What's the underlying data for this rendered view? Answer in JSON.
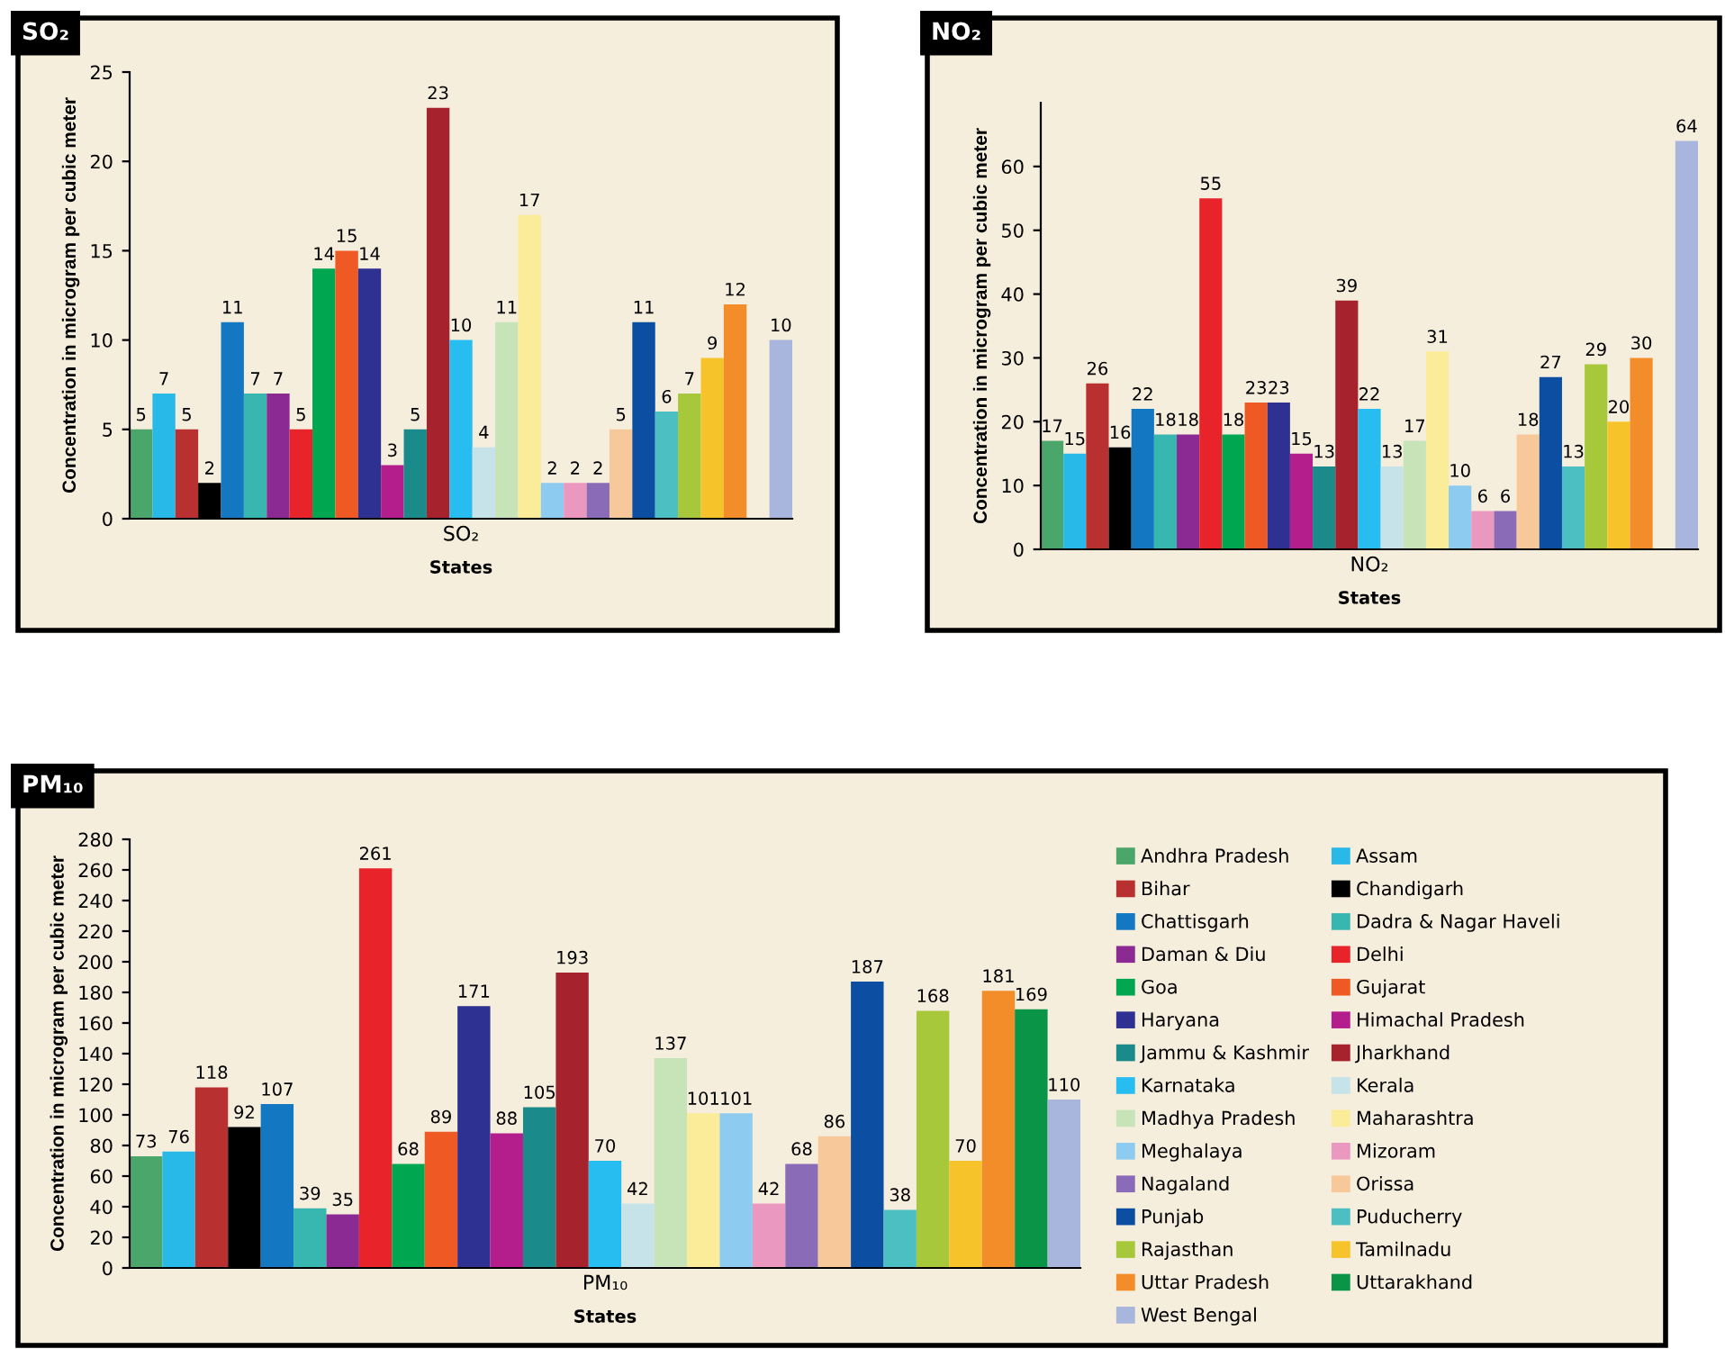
{
  "chart_data": [
    {
      "type": "bar",
      "title": "SO₂",
      "categories": [
        null,
        null,
        null,
        null,
        null,
        null,
        null,
        null,
        null,
        null,
        null,
        null,
        null,
        null,
        null,
        null,
        null,
        null,
        null,
        null,
        null,
        null,
        null,
        null,
        null,
        null,
        null,
        null,
        null
      ],
      "xlabel": "States",
      "ylabel": "Concentration in microgram per cubic meter",
      "annotations": [
        "SO₂"
      ],
      "ylim": [
        0,
        25
      ],
      "yticks": [
        0,
        5,
        10,
        15,
        20,
        25
      ],
      "data_labels": true,
      "values": [
        5,
        7,
        5,
        2,
        11,
        7,
        7,
        5,
        14,
        15,
        14,
        3,
        5,
        23,
        10,
        4,
        11,
        17,
        2,
        2,
        2,
        5,
        11,
        6,
        7,
        9,
        12,
        null,
        10
      ],
      "colors": [
        "#4aa66a",
        "#29b9e8",
        "#b8302f",
        "#000000",
        "#1377c1",
        "#38b6b0",
        "#8c2a94",
        "#e8232a",
        "#00a650",
        "#ef5a24",
        "#2e3192",
        "#b31e8c",
        "#1a8a8a",
        "#a6232d",
        "#27bdf0",
        "#c5e3e8",
        "#c7e3b8",
        "#fbec9a",
        "#8ecbf0",
        "#ea98c0",
        "#8a6bb8",
        "#f7c89a",
        "#0b4ea2",
        "#4cbfc2",
        "#a6c83a",
        "#f7c32a",
        "#f28d2a",
        "#0a9447",
        "#a8b5dc"
      ]
    },
    {
      "type": "bar",
      "title": "NO₂",
      "categories": [
        null,
        null,
        null,
        null,
        null,
        null,
        null,
        null,
        null,
        null,
        null,
        null,
        null,
        null,
        null,
        null,
        null,
        null,
        null,
        null,
        null,
        null,
        null,
        null,
        null,
        null,
        null,
        null,
        null
      ],
      "xlabel": "States",
      "ylabel": "Concentration in microgram per cubic meter",
      "annotations": [
        "NO₂"
      ],
      "ylim": [
        0,
        70
      ],
      "yticks": [
        0,
        10,
        20,
        30,
        40,
        50,
        60
      ],
      "data_labels": true,
      "values": [
        17,
        15,
        26,
        16,
        22,
        18,
        18,
        55,
        18,
        23,
        23,
        15,
        13,
        39,
        22,
        13,
        17,
        31,
        10,
        6,
        6,
        18,
        27,
        13,
        29,
        20,
        30,
        null,
        64
      ],
      "colors": [
        "#4aa66a",
        "#29b9e8",
        "#b8302f",
        "#000000",
        "#1377c1",
        "#38b6b0",
        "#8c2a94",
        "#e8232a",
        "#00a650",
        "#ef5a24",
        "#2e3192",
        "#b31e8c",
        "#1a8a8a",
        "#a6232d",
        "#27bdf0",
        "#c5e3e8",
        "#c7e3b8",
        "#fbec9a",
        "#8ecbf0",
        "#ea98c0",
        "#8a6bb8",
        "#f7c89a",
        "#0b4ea2",
        "#4cbfc2",
        "#a6c83a",
        "#f7c32a",
        "#f28d2a",
        "#0a9447",
        "#a8b5dc"
      ]
    },
    {
      "type": "bar",
      "title": "PM₁₀",
      "categories": [
        null,
        null,
        null,
        null,
        null,
        null,
        null,
        null,
        null,
        null,
        null,
        null,
        null,
        null,
        null,
        null,
        null,
        null,
        null,
        null,
        null,
        null,
        null,
        null,
        null,
        null,
        null,
        null,
        null
      ],
      "xlabel": "States",
      "ylabel": "Concentration in microgram per cubic meter",
      "annotations": [
        "PM₁₀"
      ],
      "ylim": [
        0,
        280
      ],
      "yticks": [
        0,
        20,
        40,
        60,
        80,
        100,
        120,
        140,
        160,
        180,
        200,
        220,
        240,
        260,
        280
      ],
      "data_labels": true,
      "legend": "right",
      "series": [
        {
          "name": "Andhra Pradesh",
          "color": "#4aa66a",
          "values": [
            73,
            null,
            null,
            null,
            null,
            null,
            null,
            null,
            null,
            null,
            null,
            null,
            null,
            null,
            null,
            null,
            null,
            null,
            null,
            null,
            null,
            null,
            null,
            null,
            null,
            null,
            null,
            null,
            null
          ]
        },
        {
          "name": "Assam",
          "color": "#29b9e8",
          "values": [
            null,
            76,
            null,
            null,
            null,
            null,
            null,
            null,
            null,
            null,
            null,
            null,
            null,
            null,
            null,
            null,
            null,
            null,
            null,
            null,
            null,
            null,
            null,
            null,
            null,
            null,
            null,
            null,
            null
          ]
        },
        {
          "name": "Bihar",
          "color": "#b8302f",
          "values": [
            null,
            null,
            118,
            null,
            null,
            null,
            null,
            null,
            null,
            null,
            null,
            null,
            null,
            null,
            null,
            null,
            null,
            null,
            null,
            null,
            null,
            null,
            null,
            null,
            null,
            null,
            null,
            null,
            null
          ]
        },
        {
          "name": "Chandigarh",
          "color": "#000000",
          "values": [
            null,
            null,
            null,
            92,
            null,
            null,
            null,
            null,
            null,
            null,
            null,
            null,
            null,
            null,
            null,
            null,
            null,
            null,
            null,
            null,
            null,
            null,
            null,
            null,
            null,
            null,
            null,
            null,
            null
          ]
        },
        {
          "name": "Chattisgarh",
          "color": "#1377c1",
          "values": [
            null,
            null,
            null,
            null,
            107,
            null,
            null,
            null,
            null,
            null,
            null,
            null,
            null,
            null,
            null,
            null,
            null,
            null,
            null,
            null,
            null,
            null,
            null,
            null,
            null,
            null,
            null,
            null,
            null
          ]
        },
        {
          "name": "Dadra & Nagar Haveli",
          "color": "#38b6b0",
          "values": [
            null,
            null,
            null,
            null,
            null,
            39,
            null,
            null,
            null,
            null,
            null,
            null,
            null,
            null,
            null,
            null,
            null,
            null,
            null,
            null,
            null,
            null,
            null,
            null,
            null,
            null,
            null,
            null,
            null
          ]
        },
        {
          "name": "Daman & Diu",
          "color": "#8c2a94",
          "values": [
            null,
            null,
            null,
            null,
            null,
            null,
            35,
            null,
            null,
            null,
            null,
            null,
            null,
            null,
            null,
            null,
            null,
            null,
            null,
            null,
            null,
            null,
            null,
            null,
            null,
            null,
            null,
            null,
            null
          ]
        },
        {
          "name": "Delhi",
          "color": "#e8232a",
          "values": [
            null,
            null,
            null,
            null,
            null,
            null,
            null,
            261,
            null,
            null,
            null,
            null,
            null,
            null,
            null,
            null,
            null,
            null,
            null,
            null,
            null,
            null,
            null,
            null,
            null,
            null,
            null,
            null,
            null
          ]
        },
        {
          "name": "Goa",
          "color": "#00a650",
          "values": [
            null,
            null,
            null,
            null,
            null,
            null,
            null,
            null,
            68,
            null,
            null,
            null,
            null,
            null,
            null,
            null,
            null,
            null,
            null,
            null,
            null,
            null,
            null,
            null,
            null,
            null,
            null,
            null,
            null
          ]
        },
        {
          "name": "Gujarat",
          "color": "#ef5a24",
          "values": [
            null,
            null,
            null,
            null,
            null,
            null,
            null,
            null,
            null,
            89,
            null,
            null,
            null,
            null,
            null,
            null,
            null,
            null,
            null,
            null,
            null,
            null,
            null,
            null,
            null,
            null,
            null,
            null,
            null
          ]
        },
        {
          "name": "Haryana",
          "color": "#2e3192",
          "values": [
            null,
            null,
            null,
            null,
            null,
            null,
            null,
            null,
            null,
            null,
            171,
            null,
            null,
            null,
            null,
            null,
            null,
            null,
            null,
            null,
            null,
            null,
            null,
            null,
            null,
            null,
            null,
            null,
            null
          ]
        },
        {
          "name": "Himachal Pradesh",
          "color": "#b31e8c",
          "values": [
            null,
            null,
            null,
            null,
            null,
            null,
            null,
            null,
            null,
            null,
            null,
            88,
            null,
            null,
            null,
            null,
            null,
            null,
            null,
            null,
            null,
            null,
            null,
            null,
            null,
            null,
            null,
            null,
            null
          ]
        },
        {
          "name": "Jammu & Kashmir",
          "color": "#1a8a8a",
          "values": [
            null,
            null,
            null,
            null,
            null,
            null,
            null,
            null,
            null,
            null,
            null,
            null,
            105,
            null,
            null,
            null,
            null,
            null,
            null,
            null,
            null,
            null,
            null,
            null,
            null,
            null,
            null,
            null,
            null
          ]
        },
        {
          "name": "Jharkhand",
          "color": "#a6232d",
          "values": [
            null,
            null,
            null,
            null,
            null,
            null,
            null,
            null,
            null,
            null,
            null,
            null,
            null,
            193,
            null,
            null,
            null,
            null,
            null,
            null,
            null,
            null,
            null,
            null,
            null,
            null,
            null,
            null,
            null
          ]
        },
        {
          "name": "Karnataka",
          "color": "#27bdf0",
          "values": [
            null,
            null,
            null,
            null,
            null,
            null,
            null,
            null,
            null,
            null,
            null,
            null,
            null,
            null,
            70,
            null,
            null,
            null,
            null,
            null,
            null,
            null,
            null,
            null,
            null,
            null,
            null,
            null,
            null
          ]
        },
        {
          "name": "Kerala",
          "color": "#c5e3e8",
          "values": [
            null,
            null,
            null,
            null,
            null,
            null,
            null,
            null,
            null,
            null,
            null,
            null,
            null,
            null,
            null,
            42,
            null,
            null,
            null,
            null,
            null,
            null,
            null,
            null,
            null,
            null,
            null,
            null,
            null
          ]
        },
        {
          "name": "Madhya Pradesh",
          "color": "#c7e3b8",
          "values": [
            null,
            null,
            null,
            null,
            null,
            null,
            null,
            null,
            null,
            null,
            null,
            null,
            null,
            null,
            null,
            null,
            137,
            null,
            null,
            null,
            null,
            null,
            null,
            null,
            null,
            null,
            null,
            null,
            null
          ]
        },
        {
          "name": "Maharashtra",
          "color": "#fbec9a",
          "values": [
            null,
            null,
            null,
            null,
            null,
            null,
            null,
            null,
            null,
            null,
            null,
            null,
            null,
            null,
            null,
            null,
            null,
            101,
            null,
            null,
            null,
            null,
            null,
            null,
            null,
            null,
            null,
            null,
            null
          ]
        },
        {
          "name": "Meghalaya",
          "color": "#8ecbf0",
          "values": [
            null,
            null,
            null,
            null,
            null,
            null,
            null,
            null,
            null,
            null,
            null,
            null,
            null,
            null,
            null,
            null,
            null,
            null,
            101,
            null,
            null,
            null,
            null,
            null,
            null,
            null,
            null,
            null,
            null
          ]
        },
        {
          "name": "Mizoram",
          "color": "#ea98c0",
          "values": [
            null,
            null,
            null,
            null,
            null,
            null,
            null,
            null,
            null,
            null,
            null,
            null,
            null,
            null,
            null,
            null,
            null,
            null,
            null,
            42,
            null,
            null,
            null,
            null,
            null,
            null,
            null,
            null,
            null
          ]
        },
        {
          "name": "Nagaland",
          "color": "#8a6bb8",
          "values": [
            null,
            null,
            null,
            null,
            null,
            null,
            null,
            null,
            null,
            null,
            null,
            null,
            null,
            null,
            null,
            null,
            null,
            null,
            null,
            null,
            68,
            null,
            null,
            null,
            null,
            null,
            null,
            null,
            null
          ]
        },
        {
          "name": "Orissa",
          "color": "#f7c89a",
          "values": [
            null,
            null,
            null,
            null,
            null,
            null,
            null,
            null,
            null,
            null,
            null,
            null,
            null,
            null,
            null,
            null,
            null,
            null,
            null,
            null,
            null,
            86,
            null,
            null,
            null,
            null,
            null,
            null,
            null
          ]
        },
        {
          "name": "Punjab",
          "color": "#0b4ea2",
          "values": [
            null,
            null,
            null,
            null,
            null,
            null,
            null,
            null,
            null,
            null,
            null,
            null,
            null,
            null,
            null,
            null,
            null,
            null,
            null,
            null,
            null,
            null,
            187,
            null,
            null,
            null,
            null,
            null,
            null
          ]
        },
        {
          "name": "Puducherry",
          "color": "#4cbfc2",
          "values": [
            null,
            null,
            null,
            null,
            null,
            null,
            null,
            null,
            null,
            null,
            null,
            null,
            null,
            null,
            null,
            null,
            null,
            null,
            null,
            null,
            null,
            null,
            null,
            38,
            null,
            null,
            null,
            null,
            null
          ]
        },
        {
          "name": "Rajasthan",
          "color": "#a6c83a",
          "values": [
            null,
            null,
            null,
            null,
            null,
            null,
            null,
            null,
            null,
            null,
            null,
            null,
            null,
            null,
            null,
            null,
            null,
            null,
            null,
            null,
            null,
            null,
            null,
            null,
            168,
            null,
            null,
            null,
            null
          ]
        },
        {
          "name": "Tamilnadu",
          "color": "#f7c32a",
          "values": [
            null,
            null,
            null,
            null,
            null,
            null,
            null,
            null,
            null,
            null,
            null,
            null,
            null,
            null,
            null,
            null,
            null,
            null,
            null,
            null,
            null,
            null,
            null,
            null,
            null,
            70,
            null,
            null,
            null
          ]
        },
        {
          "name": "Uttar Pradesh",
          "color": "#f28d2a",
          "values": [
            null,
            null,
            null,
            null,
            null,
            null,
            null,
            null,
            null,
            null,
            null,
            null,
            null,
            null,
            null,
            null,
            null,
            null,
            null,
            null,
            null,
            null,
            null,
            null,
            null,
            null,
            181,
            null,
            null
          ]
        },
        {
          "name": "Uttarakhand",
          "color": "#0a9447",
          "values": [
            null,
            null,
            null,
            null,
            null,
            null,
            null,
            null,
            null,
            null,
            null,
            null,
            null,
            null,
            null,
            null,
            null,
            null,
            null,
            null,
            null,
            null,
            null,
            null,
            null,
            null,
            null,
            169,
            null
          ]
        },
        {
          "name": "West Bengal",
          "color": "#a8b5dc",
          "values": [
            null,
            null,
            null,
            null,
            null,
            null,
            null,
            null,
            null,
            null,
            null,
            null,
            null,
            null,
            null,
            null,
            null,
            null,
            null,
            null,
            null,
            null,
            null,
            null,
            null,
            null,
            null,
            null,
            110
          ]
        }
      ]
    }
  ]
}
